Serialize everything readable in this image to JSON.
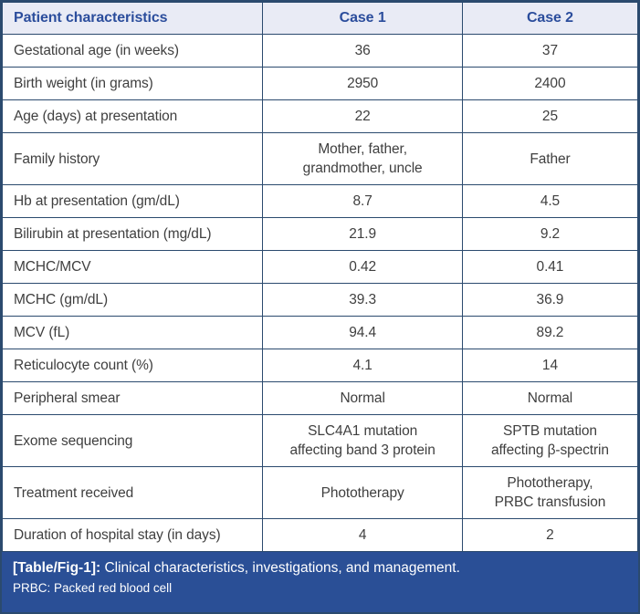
{
  "table": {
    "columns": [
      "Patient characteristics",
      "Case 1",
      "Case 2"
    ],
    "rows": [
      {
        "label": "Gestational age (in weeks)",
        "case1": "36",
        "case2": "37"
      },
      {
        "label": "Birth weight (in grams)",
        "case1": "2950",
        "case2": "2400"
      },
      {
        "label": "Age (days) at presentation",
        "case1": "22",
        "case2": "25"
      },
      {
        "label": "Family history",
        "case1": "Mother, father,\ngrandmother, uncle",
        "case2": "Father"
      },
      {
        "label": "Hb at presentation (gm/dL)",
        "case1": "8.7",
        "case2": "4.5"
      },
      {
        "label": "Bilirubin at presentation (mg/dL)",
        "case1": "21.9",
        "case2": "9.2"
      },
      {
        "label": "MCHC/MCV",
        "case1": "0.42",
        "case2": "0.41"
      },
      {
        "label": "MCHC (gm/dL)",
        "case1": "39.3",
        "case2": "36.9"
      },
      {
        "label": "MCV (fL)",
        "case1": "94.4",
        "case2": "89.2"
      },
      {
        "label": "Reticulocyte count (%)",
        "case1": "4.1",
        "case2": "14"
      },
      {
        "label": "Peripheral smear",
        "case1": "Normal",
        "case2": "Normal"
      },
      {
        "label": "Exome sequencing",
        "case1": "SLC4A1 mutation\naffecting band 3 protein",
        "case2": "SPTB mutation\naffecting β-spectrin"
      },
      {
        "label": "Treatment received",
        "case1": "Phototherapy",
        "case2": "Phototherapy,\nPRBC transfusion"
      },
      {
        "label": "Duration of hospital stay (in days)",
        "case1": "4",
        "case2": "2"
      }
    ]
  },
  "caption": {
    "label": "[Table/Fig-1]:",
    "text": "Clinical characteristics, investigations, and management.",
    "footnote": "PRBC: Packed red blood cell"
  },
  "colors": {
    "border": "#2b4a6e",
    "header_bg": "#e9ebf5",
    "header_text": "#2b4d9c",
    "body_text": "#3f3f3f",
    "caption_bg": "#2a4f96",
    "caption_text": "#ffffff"
  }
}
